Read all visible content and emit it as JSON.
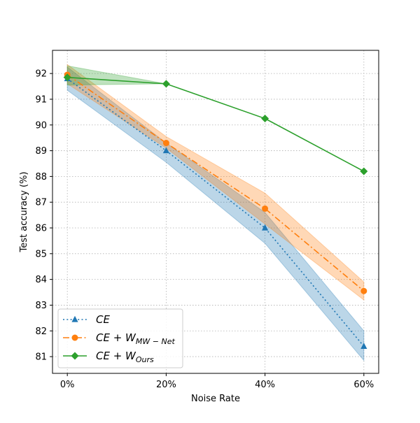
{
  "chart_data": {
    "type": "line",
    "xlabel": "Noise Rate",
    "ylabel": "Test accuracy (%)",
    "x": [
      0,
      20,
      40,
      60
    ],
    "x_tick_labels": [
      "0%",
      "20%",
      "40%",
      "60%"
    ],
    "xlim": [
      -3,
      63
    ],
    "ylim": [
      80.35,
      92.9
    ],
    "y_ticks": [
      81,
      82,
      83,
      84,
      85,
      86,
      87,
      88,
      89,
      90,
      91,
      92
    ],
    "grid": true,
    "legend_position": "bottom-left",
    "series": [
      {
        "name": "CE",
        "legend_main": "CE",
        "legend_sub": "",
        "color": "#1f77b4",
        "marker": "triangle",
        "linestyle": "dotted",
        "values": [
          91.8,
          89.0,
          86.0,
          81.4
        ],
        "lower": [
          91.35,
          88.55,
          85.4,
          80.85
        ],
        "upper": [
          92.25,
          89.3,
          86.6,
          82.0
        ]
      },
      {
        "name": "CE + W_MW-Net",
        "legend_main": "CE + W",
        "legend_sub": "MW − Net",
        "color": "#ff7f0e",
        "marker": "circle",
        "linestyle": "dashdot",
        "values": [
          91.95,
          89.3,
          86.75,
          83.55
        ],
        "lower": [
          91.6,
          89.1,
          86.15,
          83.2
        ],
        "upper": [
          92.35,
          89.55,
          87.35,
          83.9
        ]
      },
      {
        "name": "CE + W_Ours",
        "legend_main": "CE + W",
        "legend_sub": "Ours",
        "color": "#2ca02c",
        "marker": "diamond",
        "linestyle": "solid",
        "values": [
          91.85,
          91.6,
          90.25,
          88.2
        ],
        "lower": [
          91.55,
          91.6,
          90.25,
          88.2
        ],
        "upper": [
          92.3,
          91.6,
          90.25,
          88.2
        ]
      }
    ]
  }
}
